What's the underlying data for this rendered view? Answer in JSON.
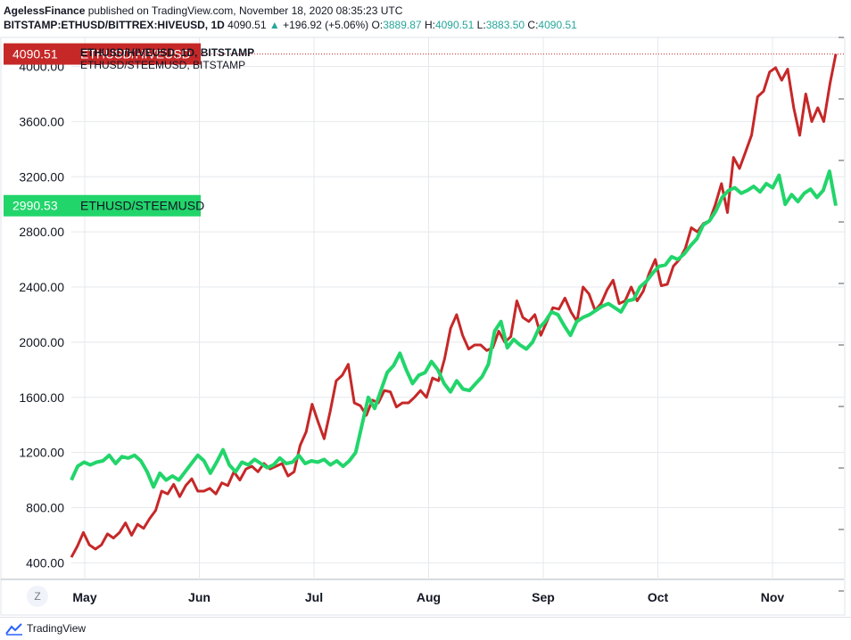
{
  "header": {
    "author": "AgelessFinance",
    "published": "published on TradingView.com, November 18, 2020 08:35:23 UTC",
    "symbol": "BITSTAMP:ETHUSD/BITTREX:HIVEUSD, 1D",
    "last": "4090.51",
    "arrow": "▲",
    "change": "+196.92 (+5.06%)",
    "o_label": "O:",
    "o_value": "3889.87",
    "h_label": "H:",
    "h_value": "4090.51",
    "l_label": "L:",
    "l_value": "3883.50",
    "c_label": "C:",
    "c_value": "4090.51"
  },
  "chart_data": {
    "type": "line",
    "legend": [
      "ETHUSD/HIVEUSD, 1D, BITSTAMP",
      "ETHUSD/STEEMUSD, BITSTAMP"
    ],
    "x_ticks": [
      "May",
      "Jun",
      "Jul",
      "Aug",
      "Sep",
      "Oct",
      "Nov"
    ],
    "y_ticks": [
      "400.00",
      "800.00",
      "1200.00",
      "1600.00",
      "2000.00",
      "2400.00",
      "2800.00",
      "3200.00",
      "3600.00",
      "4000.00"
    ],
    "y_tick_values": [
      400,
      800,
      1200,
      1600,
      2000,
      2400,
      2800,
      3200,
      3600,
      4000
    ],
    "ylim": [
      280,
      4210
    ],
    "x_start": "2020-04-29",
    "x_end": "2020-11-18",
    "series": [
      {
        "name": "ETHUSD/HIVEUSD",
        "color": "#c62828",
        "price_label": "4090.51",
        "tag_text": "ETHUSD/HIVEUSD",
        "points": [
          [
            "2020-04-29",
            440
          ],
          [
            "2020-05-02",
            520
          ],
          [
            "2020-05-03",
            620
          ],
          [
            "2020-05-05",
            530
          ],
          [
            "2020-05-06",
            500
          ],
          [
            "2020-05-08",
            530
          ],
          [
            "2020-05-12",
            610
          ],
          [
            "2020-05-14",
            580
          ],
          [
            "2020-05-17",
            620
          ],
          [
            "2020-05-19",
            690
          ],
          [
            "2020-05-21",
            600
          ],
          [
            "2020-05-22",
            680
          ],
          [
            "2020-05-24",
            650
          ],
          [
            "2020-05-27",
            720
          ],
          [
            "2020-05-31",
            780
          ],
          [
            "2020-06-02",
            920
          ],
          [
            "2020-06-03",
            900
          ],
          [
            "2020-06-05",
            970
          ],
          [
            "2020-06-07",
            880
          ],
          [
            "2020-06-10",
            960
          ],
          [
            "2020-06-13",
            1010
          ],
          [
            "2020-06-14",
            920
          ],
          [
            "2020-06-18",
            920
          ],
          [
            "2020-06-22",
            940
          ],
          [
            "2020-06-24",
            900
          ],
          [
            "2020-06-27",
            980
          ],
          [
            "2020-06-30",
            960
          ],
          [
            "2020-07-02",
            1060
          ],
          [
            "2020-07-05",
            1000
          ],
          [
            "2020-07-07",
            1080
          ],
          [
            "2020-07-10",
            1100
          ],
          [
            "2020-07-13",
            1060
          ],
          [
            "2020-07-16",
            1120
          ],
          [
            "2020-07-19",
            1080
          ],
          [
            "2020-07-22",
            1100
          ],
          [
            "2020-07-24",
            1120
          ],
          [
            "2020-07-25",
            1030
          ],
          [
            "2020-07-26",
            1060
          ],
          [
            "2020-07-28",
            1250
          ],
          [
            "2020-07-30",
            1350
          ],
          [
            "2020-08-01",
            1550
          ],
          [
            "2020-08-02",
            1420
          ],
          [
            "2020-08-03",
            1300
          ],
          [
            "2020-08-05",
            1500
          ],
          [
            "2020-08-07",
            1720
          ],
          [
            "2020-08-09",
            1760
          ],
          [
            "2020-08-11",
            1840
          ],
          [
            "2020-08-13",
            1560
          ],
          [
            "2020-08-15",
            1540
          ],
          [
            "2020-08-17",
            1470
          ],
          [
            "2020-08-19",
            1580
          ],
          [
            "2020-08-21",
            1560
          ],
          [
            "2020-08-23",
            1650
          ],
          [
            "2020-08-25",
            1640
          ],
          [
            "2020-08-26",
            1530
          ],
          [
            "2020-08-28",
            1560
          ],
          [
            "2020-08-30",
            1560
          ],
          [
            "2020-09-01",
            1600
          ],
          [
            "2020-09-03",
            1650
          ],
          [
            "2020-09-05",
            1600
          ],
          [
            "2020-09-07",
            1740
          ],
          [
            "2020-09-09",
            1720
          ],
          [
            "2020-09-10",
            1880
          ],
          [
            "2020-09-12",
            2100
          ],
          [
            "2020-09-13",
            2200
          ],
          [
            "2020-09-14",
            2050
          ],
          [
            "2020-09-16",
            1950
          ],
          [
            "2020-09-18",
            1980
          ],
          [
            "2020-09-20",
            1980
          ],
          [
            "2020-09-22",
            1940
          ],
          [
            "2020-09-24",
            1960
          ],
          [
            "2020-09-25",
            2080
          ],
          [
            "2020-09-26",
            2000
          ],
          [
            "2020-09-27",
            2040
          ],
          [
            "2020-09-29",
            2300
          ],
          [
            "2020-09-30",
            2180
          ],
          [
            "2020-10-01",
            2150
          ],
          [
            "2020-10-03",
            2200
          ],
          [
            "2020-10-05",
            2050
          ],
          [
            "2020-10-07",
            2150
          ],
          [
            "2020-10-09",
            2250
          ],
          [
            "2020-10-12",
            2240
          ],
          [
            "2020-10-14",
            2320
          ],
          [
            "2020-10-15",
            2220
          ],
          [
            "2020-10-17",
            2150
          ],
          [
            "2020-10-19",
            2400
          ],
          [
            "2020-10-21",
            2350
          ],
          [
            "2020-10-22",
            2230
          ],
          [
            "2020-10-24",
            2280
          ],
          [
            "2020-10-25",
            2380
          ],
          [
            "2020-10-26",
            2450
          ],
          [
            "2020-10-27",
            2280
          ],
          [
            "2020-10-29",
            2300
          ],
          [
            "2020-10-31",
            2400
          ],
          [
            "2020-11-01",
            2300
          ],
          [
            "2020-11-03",
            2370
          ],
          [
            "2020-11-05",
            2500
          ],
          [
            "2020-11-07",
            2600
          ],
          [
            "2020-11-09",
            2410
          ],
          [
            "2020-11-11",
            2420
          ],
          [
            "2020-11-13",
            2550
          ],
          [
            "2020-11-15",
            2600
          ],
          [
            "2020-11-17",
            2680
          ],
          [
            "2020-11-19",
            2830
          ],
          [
            "2020-11-21",
            2800
          ],
          [
            "2020-11-23",
            2860
          ],
          [
            "2020-11-25",
            2880
          ],
          [
            "2020-11-27",
            3000
          ],
          [
            "2020-11-28",
            3150
          ],
          [
            "2020-11-29",
            2940
          ],
          [
            "2020-11-30",
            3340
          ],
          [
            "2020-12-01",
            3260
          ],
          [
            "2020-12-03",
            3380
          ],
          [
            "2020-12-04",
            3500
          ],
          [
            "2020-12-06",
            3780
          ],
          [
            "2020-12-08",
            3820
          ],
          [
            "2020-12-10",
            3960
          ],
          [
            "2020-12-11",
            3990
          ],
          [
            "2020-12-12",
            3900
          ],
          [
            "2020-12-13",
            3980
          ],
          [
            "2020-12-15",
            3700
          ],
          [
            "2020-12-16",
            3500
          ],
          [
            "2020-12-18",
            3800
          ],
          [
            "2020-12-19",
            3600
          ],
          [
            "2020-12-20",
            3700
          ],
          [
            "2020-12-22",
            3600
          ],
          [
            "2020-12-23",
            3870
          ],
          [
            "2020-12-25",
            4090
          ]
        ]
      },
      {
        "name": "ETHUSD/STEEMUSD",
        "color": "#22d56b",
        "price_label": "2990.53",
        "tag_text": "ETHUSD/STEEMUSD",
        "points": [
          [
            "2020-04-29",
            1000
          ],
          [
            "2020-05-01",
            1100
          ],
          [
            "2020-05-03",
            1130
          ],
          [
            "2020-05-05",
            1110
          ],
          [
            "2020-05-07",
            1130
          ],
          [
            "2020-05-09",
            1140
          ],
          [
            "2020-05-11",
            1180
          ],
          [
            "2020-05-13",
            1120
          ],
          [
            "2020-05-15",
            1170
          ],
          [
            "2020-05-17",
            1160
          ],
          [
            "2020-05-19",
            1180
          ],
          [
            "2020-05-21",
            1140
          ],
          [
            "2020-05-23",
            1060
          ],
          [
            "2020-05-24",
            950
          ],
          [
            "2020-05-26",
            1050
          ],
          [
            "2020-05-28",
            1000
          ],
          [
            "2020-05-30",
            1030
          ],
          [
            "2020-06-01",
            1000
          ],
          [
            "2020-06-03",
            1060
          ],
          [
            "2020-06-05",
            1120
          ],
          [
            "2020-06-07",
            1180
          ],
          [
            "2020-06-09",
            1140
          ],
          [
            "2020-06-11",
            1050
          ],
          [
            "2020-06-13",
            1130
          ],
          [
            "2020-06-15",
            1220
          ],
          [
            "2020-06-17",
            1110
          ],
          [
            "2020-06-19",
            1060
          ],
          [
            "2020-06-21",
            1130
          ],
          [
            "2020-06-23",
            1110
          ],
          [
            "2020-06-25",
            1150
          ],
          [
            "2020-06-27",
            1120
          ],
          [
            "2020-06-29",
            1090
          ],
          [
            "2020-07-01",
            1110
          ],
          [
            "2020-07-03",
            1160
          ],
          [
            "2020-07-05",
            1120
          ],
          [
            "2020-07-07",
            1130
          ],
          [
            "2020-07-09",
            1180
          ],
          [
            "2020-07-11",
            1120
          ],
          [
            "2020-07-13",
            1140
          ],
          [
            "2020-07-15",
            1130
          ],
          [
            "2020-07-17",
            1150
          ],
          [
            "2020-07-19",
            1110
          ],
          [
            "2020-07-21",
            1140
          ],
          [
            "2020-07-23",
            1100
          ],
          [
            "2020-07-25",
            1140
          ],
          [
            "2020-07-27",
            1200
          ],
          [
            "2020-07-29",
            1400
          ],
          [
            "2020-07-31",
            1600
          ],
          [
            "2020-08-02",
            1520
          ],
          [
            "2020-08-04",
            1650
          ],
          [
            "2020-08-06",
            1780
          ],
          [
            "2020-08-08",
            1830
          ],
          [
            "2020-08-10",
            1920
          ],
          [
            "2020-08-12",
            1800
          ],
          [
            "2020-08-14",
            1700
          ],
          [
            "2020-08-16",
            1760
          ],
          [
            "2020-08-18",
            1780
          ],
          [
            "2020-08-20",
            1860
          ],
          [
            "2020-08-22",
            1800
          ],
          [
            "2020-08-24",
            1700
          ],
          [
            "2020-08-26",
            1640
          ],
          [
            "2020-08-28",
            1720
          ],
          [
            "2020-08-30",
            1660
          ],
          [
            "2020-09-01",
            1650
          ],
          [
            "2020-09-03",
            1700
          ],
          [
            "2020-09-05",
            1750
          ],
          [
            "2020-09-07",
            1840
          ],
          [
            "2020-09-09",
            2080
          ],
          [
            "2020-09-11",
            2150
          ],
          [
            "2020-09-13",
            1960
          ],
          [
            "2020-09-15",
            2020
          ],
          [
            "2020-09-17",
            1980
          ],
          [
            "2020-09-19",
            1950
          ],
          [
            "2020-09-21",
            2000
          ],
          [
            "2020-09-23",
            2100
          ],
          [
            "2020-09-25",
            2150
          ],
          [
            "2020-09-27",
            2220
          ],
          [
            "2020-09-29",
            2200
          ],
          [
            "2020-10-01",
            2120
          ],
          [
            "2020-10-03",
            2050
          ],
          [
            "2020-10-05",
            2150
          ],
          [
            "2020-10-07",
            2180
          ],
          [
            "2020-10-09",
            2200
          ],
          [
            "2020-10-11",
            2230
          ],
          [
            "2020-10-13",
            2260
          ],
          [
            "2020-10-15",
            2280
          ],
          [
            "2020-10-17",
            2250
          ],
          [
            "2020-10-19",
            2220
          ],
          [
            "2020-10-21",
            2300
          ],
          [
            "2020-10-23",
            2310
          ],
          [
            "2020-10-25",
            2400
          ],
          [
            "2020-10-27",
            2440
          ],
          [
            "2020-10-29",
            2500
          ],
          [
            "2020-10-31",
            2550
          ],
          [
            "2020-11-02",
            2560
          ],
          [
            "2020-11-04",
            2620
          ],
          [
            "2020-11-06",
            2600
          ],
          [
            "2020-11-08",
            2640
          ],
          [
            "2020-11-10",
            2700
          ],
          [
            "2020-11-12",
            2750
          ],
          [
            "2020-11-14",
            2850
          ],
          [
            "2020-11-16",
            2880
          ],
          [
            "2020-11-18",
            2950
          ],
          [
            "2020-11-20",
            3050
          ],
          [
            "2020-11-22",
            3100
          ],
          [
            "2020-11-24",
            3120
          ],
          [
            "2020-11-26",
            3080
          ],
          [
            "2020-11-28",
            3100
          ],
          [
            "2020-11-30",
            3130
          ],
          [
            "2020-12-02",
            3090
          ],
          [
            "2020-12-04",
            3150
          ],
          [
            "2020-12-06",
            3120
          ],
          [
            "2020-12-08",
            3210
          ],
          [
            "2020-12-10",
            3000
          ],
          [
            "2020-12-12",
            3070
          ],
          [
            "2020-12-14",
            3020
          ],
          [
            "2020-12-16",
            3080
          ],
          [
            "2020-12-18",
            3110
          ],
          [
            "2020-12-20",
            3050
          ],
          [
            "2020-12-22",
            3100
          ],
          [
            "2020-12-24",
            3240
          ],
          [
            "2020-12-25",
            2990
          ]
        ]
      }
    ]
  },
  "toolbar": {
    "z_label": "Z"
  },
  "footer": {
    "brand": "TradingView"
  }
}
